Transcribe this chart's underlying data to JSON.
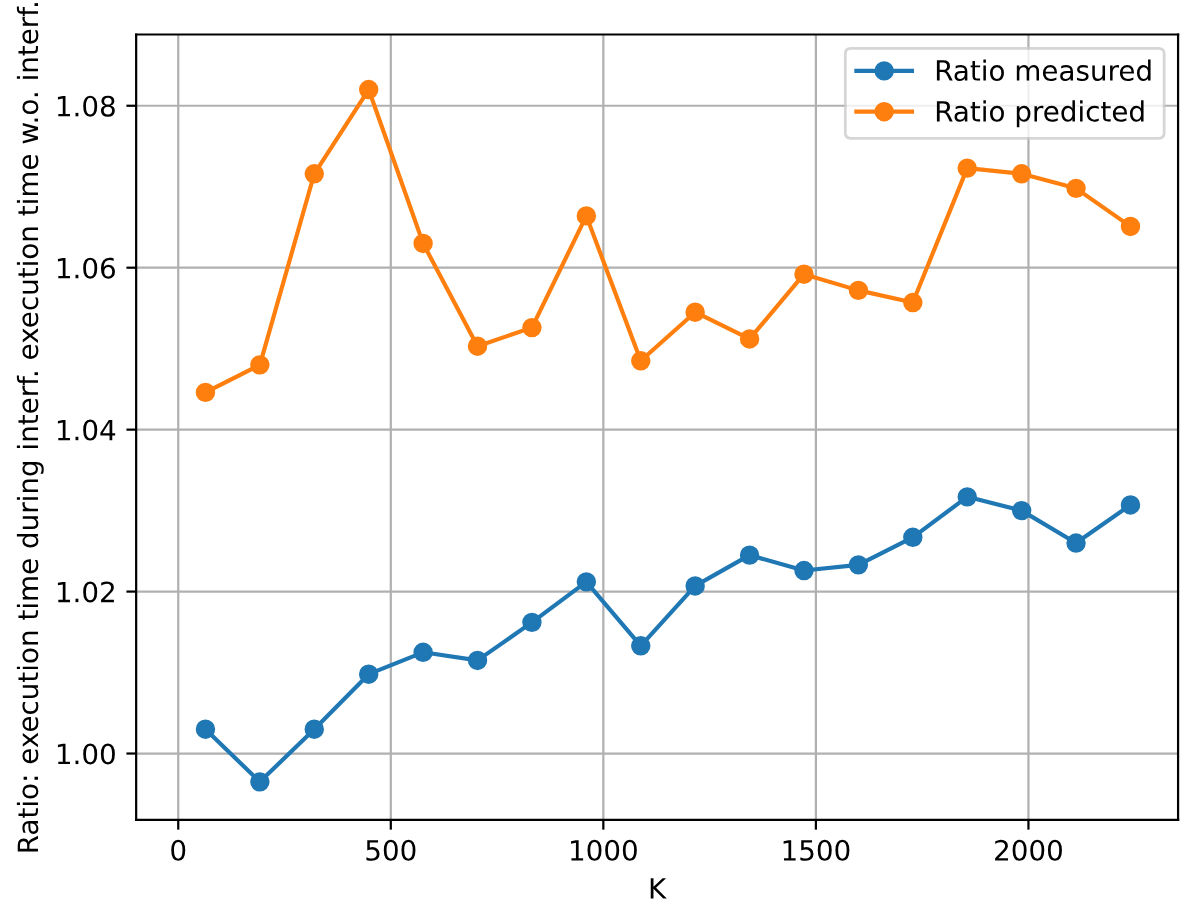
{
  "chart_data": {
    "type": "line",
    "xlabel": "K",
    "ylabel": "Ratio: execution time during interf. execution time w.o. interf.",
    "x": [
      64,
      192,
      320,
      448,
      576,
      704,
      832,
      960,
      1088,
      1216,
      1344,
      1472,
      1600,
      1728,
      1856,
      1984,
      2112,
      2240
    ],
    "series": [
      {
        "name": "Ratio measured",
        "color": "#1f77b4",
        "values": [
          1.003,
          0.9965,
          1.003,
          1.0098,
          1.0125,
          1.0115,
          1.0162,
          1.0212,
          1.0133,
          1.0207,
          1.0245,
          1.0226,
          1.0233,
          1.0267,
          1.0317,
          1.03,
          1.026,
          1.0307
        ]
      },
      {
        "name": "Ratio predicted",
        "color": "#ff7f0e",
        "values": [
          1.0446,
          1.048,
          1.0716,
          1.082,
          1.063,
          1.0503,
          1.0526,
          1.0664,
          1.0485,
          1.0545,
          1.0512,
          1.0592,
          1.0572,
          1.0557,
          1.0723,
          1.0716,
          1.0698,
          1.0651
        ]
      }
    ],
    "xlim": [
      -99,
      2352
    ],
    "ylim": [
      0.9918,
      1.0888
    ],
    "xticks": [
      0,
      500,
      1000,
      1500,
      2000
    ],
    "yticks": [
      {
        "value": 1.0,
        "label": "1.00"
      },
      {
        "value": 1.02,
        "label": "1.02"
      },
      {
        "value": 1.04,
        "label": "1.04"
      },
      {
        "value": 1.06,
        "label": "1.06"
      },
      {
        "value": 1.08,
        "label": "1.08"
      }
    ],
    "grid": true,
    "legend": "top right",
    "marker": "circle",
    "line_style": "solid"
  }
}
